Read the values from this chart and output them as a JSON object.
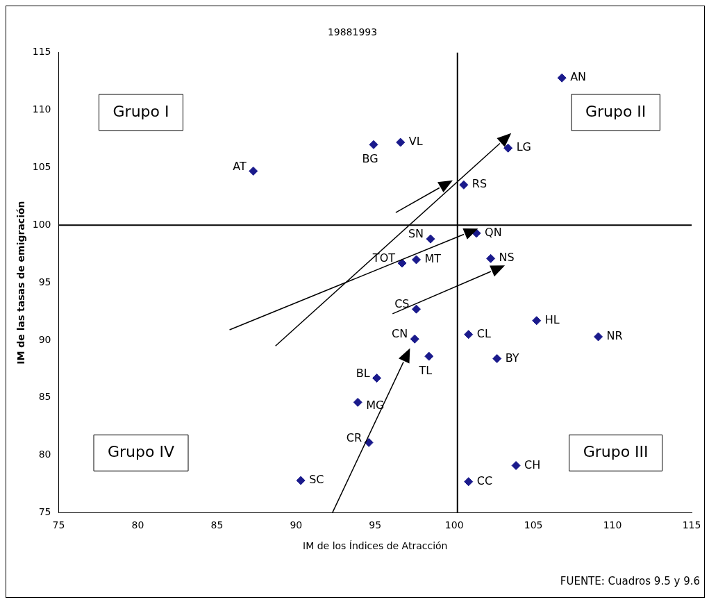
{
  "chart_data": {
    "type": "scatter",
    "title": "19881993",
    "xlabel": "IM de los Índices de Atracción",
    "ylabel": "IM de las tasas de emigración",
    "x": [
      106.8,
      103.4,
      96.6,
      94.9,
      87.3,
      100.6,
      101.4,
      98.5,
      97.6,
      96.7,
      102.3,
      97.6,
      105.2,
      109.1,
      100.9,
      97.5,
      98.4,
      102.7,
      95.1,
      93.9,
      94.6,
      103.9,
      100.9,
      90.3
    ],
    "values": [
      112.8,
      106.7,
      107.2,
      107.0,
      104.7,
      103.5,
      99.3,
      98.8,
      97.0,
      96.7,
      97.1,
      92.7,
      91.7,
      90.3,
      90.5,
      90.1,
      88.6,
      88.4,
      86.7,
      84.6,
      81.1,
      79.1,
      77.7,
      77.8
    ],
    "value_labels": [
      "AN",
      "LG",
      "VL",
      "BG",
      "AT",
      "RS",
      "QN",
      "SN",
      "MT",
      "TOT",
      "NS",
      "CS",
      "HL",
      "NR",
      "CL",
      "CN",
      "TL",
      "BY",
      "BL",
      "MG",
      "CR",
      "CH",
      "CC",
      "SC"
    ],
    "color": "#1a1a8c",
    "marker": "diamond",
    "grid": false,
    "legend": false,
    "xlim": [
      75,
      115
    ],
    "xticks": [
      75,
      80,
      85,
      90,
      95,
      100,
      105,
      110,
      115
    ],
    "ylim": [
      75,
      115
    ],
    "yticks": [
      75,
      80,
      85,
      90,
      95,
      100,
      105,
      110,
      115
    ],
    "ref_lines": [
      {
        "axis": "x",
        "value": 100.2,
        "color": "#000000"
      },
      {
        "axis": "y",
        "value": 100,
        "color": "#000000"
      }
    ],
    "annotations": [
      "Grupo I",
      "Grupo II",
      "Grupo IV",
      "Grupo III",
      "FUENTE: Cuadros 9.5 y 9.6"
    ]
  }
}
